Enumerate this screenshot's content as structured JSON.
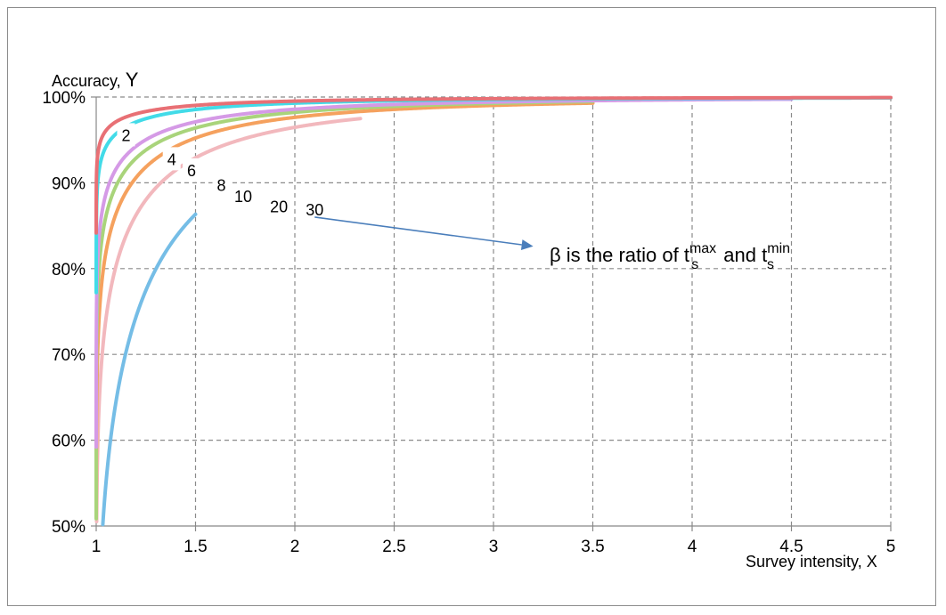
{
  "chart_data": {
    "type": "line",
    "title": "",
    "xlabel": "Survey intensity, X",
    "ylabel_prefix": "Accuracy, ",
    "ylabel_var": "Y",
    "xlim": [
      1,
      5
    ],
    "ylim": [
      0.5,
      1.0
    ],
    "x_ticks": [
      "1",
      "1.5",
      "2",
      "2.5",
      "3",
      "3.5",
      "4",
      "4.5",
      "5"
    ],
    "y_ticks": [
      "50%",
      "60%",
      "70%",
      "80%",
      "90%",
      "100%"
    ],
    "grid": true,
    "grid_style": "dashed",
    "legend": "inline labels",
    "series": [
      {
        "name": "2",
        "beta": 2,
        "color": "#75bde6",
        "label_x": 1.15,
        "label_y": 0.955,
        "x_max": 1.5
      },
      {
        "name": "4",
        "beta": 4,
        "color": "#f2b8bd",
        "label_x": 1.38,
        "label_y": 0.927,
        "x_max": 2.33
      },
      {
        "name": "6",
        "beta": 6,
        "color": "#f5a15e",
        "label_x": 1.48,
        "label_y": 0.914,
        "x_max": 3.5
      },
      {
        "name": "8",
        "beta": 8,
        "color": "#a9d47b",
        "label_x": 1.63,
        "label_y": 0.897,
        "x_max": 3.5
      },
      {
        "name": "10",
        "beta": 10,
        "color": "#d59ae6",
        "label_x": 1.74,
        "label_y": 0.884,
        "x_max": 4.5
      },
      {
        "name": "20",
        "beta": 20,
        "color": "#42dbe8",
        "label_x": 1.92,
        "label_y": 0.872,
        "x_max": 5
      },
      {
        "name": "30",
        "beta": 30,
        "color": "#e87075",
        "label_x": 2.1,
        "label_y": 0.868,
        "x_max": 5
      }
    ],
    "annotation": {
      "prefix": "β is the  ratio of t",
      "sup1": "max",
      "sub1": "s",
      "middle": " and t",
      "sup2": "min",
      "sub2": "s",
      "arrow_color": "#4a7ebb",
      "arrow_from": [
        2.1,
        0.86
      ],
      "arrow_to": [
        3.2,
        0.826
      ]
    }
  }
}
